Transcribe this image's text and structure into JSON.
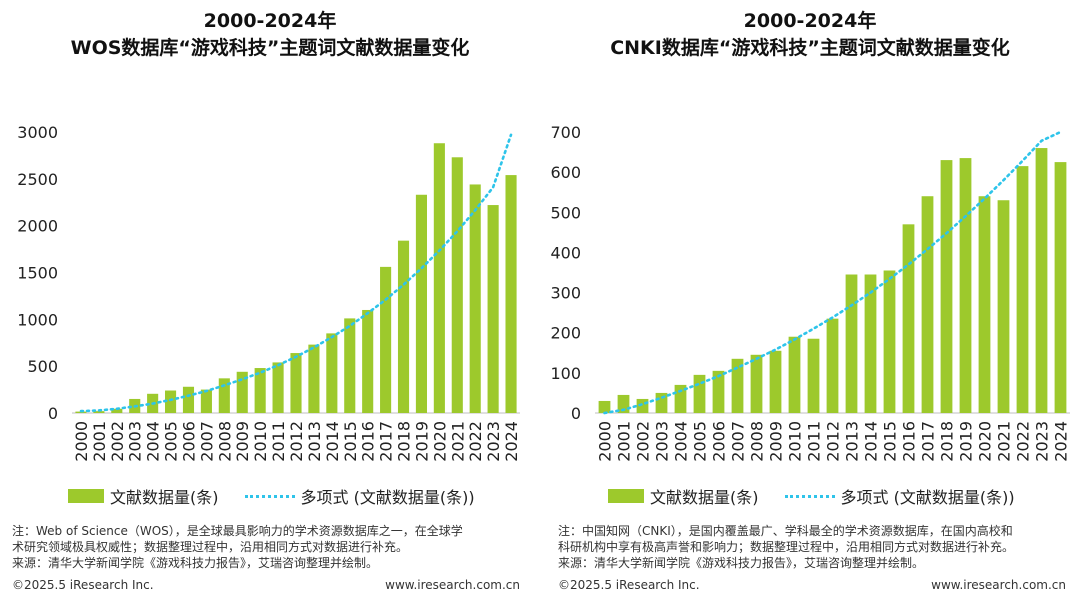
{
  "left": {
    "title_line1": "2000-2024年",
    "title_line2": "WOS数据库“游戏科技”主题词文献数据量变化",
    "legend_bar": "文献数据量(条)",
    "legend_line": "多项式 (文献数据量(条))",
    "note_lines": [
      "注：Web of Science（WOS），是全球最具影响力的学术资源数据库之一，在全球学",
      "术研究领域极具权威性；数据整理过程中，沿用相同方式对数据进行补充。",
      "来源：清华大学新闻学院《游戏科技力报告》，艾瑞咨询整理并绘制。"
    ],
    "footer_left": "©2025.5 iResearch Inc.",
    "footer_right": "www.iresearch.com.cn"
  },
  "right": {
    "title_line1": "2000-2024年",
    "title_line2": "CNKI数据库“游戏科技”主题词文献数据量变化",
    "legend_bar": "文献数据量(条)",
    "legend_line": "多项式 (文献数据量(条))",
    "note_lines": [
      "注：中国知网（CNKI），是国内覆盖最广、学科最全的学术资源数据库，在国内高校和",
      "科研机构中享有极高声誉和影响力；数据整理过程中，沿用相同方式对数据进行补充。",
      "来源：清华大学新闻学院《游戏科技力报告》，艾瑞咨询整理并绘制。"
    ],
    "footer_left": "©2025.5 iResearch Inc.",
    "footer_right": "www.iresearch.com.cn"
  },
  "colors": {
    "bar": "#9dc92c",
    "trend": "#2ec4ea",
    "axis": "#bfbfbf"
  },
  "chart_data": [
    {
      "type": "bar",
      "title": "2000-2024年 WOS数据库“游戏科技”主题词文献数据量变化",
      "categories": [
        "2000",
        "2001",
        "2002",
        "2003",
        "2004",
        "2005",
        "2006",
        "2007",
        "2008",
        "2009",
        "2010",
        "2011",
        "2012",
        "2013",
        "2014",
        "2015",
        "2016",
        "2017",
        "2018",
        "2019",
        "2020",
        "2021",
        "2022",
        "2023",
        "2024"
      ],
      "series": [
        {
          "name": "文献数据量(条)",
          "values": [
            15,
            20,
            45,
            150,
            205,
            240,
            280,
            250,
            370,
            440,
            480,
            540,
            640,
            730,
            850,
            1010,
            1100,
            1560,
            1840,
            2330,
            2880,
            2730,
            2440,
            2220,
            2540
          ]
        },
        {
          "name": "多项式 (文献数据量(条))",
          "kind": "trendline",
          "values": [
            20,
            28,
            45,
            70,
            100,
            140,
            185,
            235,
            295,
            360,
            430,
            510,
            600,
            700,
            810,
            930,
            1065,
            1210,
            1370,
            1545,
            1735,
            1940,
            2165,
            2410,
            2970
          ]
        }
      ],
      "yticks": [
        0,
        500,
        1000,
        1500,
        2000,
        2500,
        3000
      ],
      "ylim": [
        0,
        3000
      ],
      "legend": "bottom"
    },
    {
      "type": "bar",
      "title": "2000-2024年 CNKI数据库“游戏科技”主题词文献数据量变化",
      "categories": [
        "2000",
        "2001",
        "2002",
        "2003",
        "2004",
        "2005",
        "2006",
        "2007",
        "2008",
        "2009",
        "2010",
        "2011",
        "2012",
        "2013",
        "2014",
        "2015",
        "2016",
        "2017",
        "2018",
        "2019",
        "2020",
        "2021",
        "2022",
        "2023",
        "2024"
      ],
      "series": [
        {
          "name": "文献数据量(条)",
          "values": [
            30,
            45,
            35,
            50,
            70,
            95,
            105,
            135,
            145,
            155,
            190,
            185,
            235,
            345,
            345,
            355,
            470,
            540,
            630,
            635,
            540,
            530,
            615,
            660,
            625
          ]
        },
        {
          "name": "多项式 (文献数据量(条))",
          "kind": "trendline",
          "values": [
            -5,
            8,
            22,
            38,
            55,
            73,
            92,
            113,
            135,
            158,
            183,
            210,
            238,
            268,
            300,
            334,
            370,
            408,
            448,
            490,
            534,
            580,
            628,
            678,
            700
          ]
        }
      ],
      "yticks": [
        0,
        100,
        200,
        300,
        400,
        500,
        600,
        700
      ],
      "ylim": [
        0,
        700
      ],
      "legend": "bottom"
    }
  ]
}
